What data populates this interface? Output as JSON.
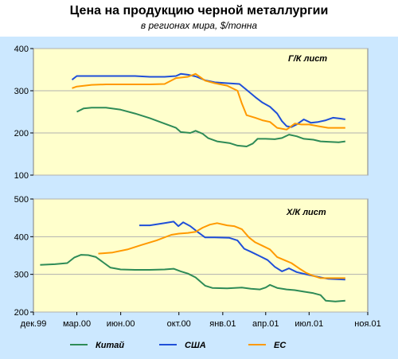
{
  "header": {
    "title": "Цена на продукцию черной металлургии",
    "subtitle_part1": "в регионах мира",
    "subtitle_part2": ", $/тонна"
  },
  "chart_data": [
    {
      "type": "line",
      "panel_label": "Г/К лист",
      "ylim": [
        100,
        400
      ],
      "yticks": [
        100,
        200,
        300,
        400
      ],
      "x_range": [
        "1999-12-01",
        "2001-11-01"
      ],
      "grid": true,
      "series": [
        {
          "name": "Китай",
          "color": "#2e8b57",
          "points": [
            [
              "2000-03-01",
              250
            ],
            [
              "2000-03-15",
              258
            ],
            [
              "2000-04-01",
              260
            ],
            [
              "2000-05-01",
              260
            ],
            [
              "2000-06-01",
              255
            ],
            [
              "2000-07-01",
              246
            ],
            [
              "2000-08-01",
              235
            ],
            [
              "2000-09-01",
              222
            ],
            [
              "2000-09-25",
              212
            ],
            [
              "2000-10-05",
              202
            ],
            [
              "2000-10-25",
              200
            ],
            [
              "2000-11-05",
              205
            ],
            [
              "2000-11-20",
              198
            ],
            [
              "2000-12-01",
              188
            ],
            [
              "2000-12-20",
              180
            ],
            [
              "2001-01-15",
              176
            ],
            [
              "2001-02-01",
              170
            ],
            [
              "2001-02-20",
              168
            ],
            [
              "2001-03-05",
              175
            ],
            [
              "2001-03-15",
              186
            ],
            [
              "2001-04-01",
              186
            ],
            [
              "2001-04-20",
              185
            ],
            [
              "2001-05-05",
              188
            ],
            [
              "2001-05-20",
              196
            ],
            [
              "2001-06-05",
              192
            ],
            [
              "2001-06-20",
              186
            ],
            [
              "2001-07-10",
              184
            ],
            [
              "2001-07-25",
              180
            ],
            [
              "2001-08-10",
              179
            ],
            [
              "2001-09-01",
              178
            ],
            [
              "2001-09-15",
              180
            ]
          ]
        },
        {
          "name": "США",
          "color": "#1f4fd8",
          "points": [
            [
              "2000-02-20",
              326
            ],
            [
              "2000-03-01",
              335
            ],
            [
              "2000-04-01",
              335
            ],
            [
              "2000-05-01",
              335
            ],
            [
              "2000-06-01",
              335
            ],
            [
              "2000-07-01",
              335
            ],
            [
              "2000-08-01",
              333
            ],
            [
              "2000-09-01",
              333
            ],
            [
              "2000-09-25",
              335
            ],
            [
              "2000-10-05",
              340
            ],
            [
              "2000-10-20",
              338
            ],
            [
              "2000-11-05",
              334
            ],
            [
              "2000-11-25",
              325
            ],
            [
              "2000-12-15",
              320
            ],
            [
              "2001-01-10",
              318
            ],
            [
              "2001-02-05",
              316
            ],
            [
              "2001-02-20",
              302
            ],
            [
              "2001-03-10",
              285
            ],
            [
              "2001-03-25",
              272
            ],
            [
              "2001-04-10",
              262
            ],
            [
              "2001-04-25",
              246
            ],
            [
              "2001-05-05",
              228
            ],
            [
              "2001-05-15",
              216
            ],
            [
              "2001-05-25",
              214
            ],
            [
              "2001-06-05",
              220
            ],
            [
              "2001-06-20",
              232
            ],
            [
              "2001-07-05",
              224
            ],
            [
              "2001-07-20",
              226
            ],
            [
              "2001-08-05",
              230
            ],
            [
              "2001-08-20",
              236
            ],
            [
              "2001-09-05",
              234
            ],
            [
              "2001-09-15",
              232
            ]
          ]
        },
        {
          "name": "ЕС",
          "color": "#ff9900",
          "points": [
            [
              "2000-02-20",
              306
            ],
            [
              "2000-03-01",
              310
            ],
            [
              "2000-04-01",
              314
            ],
            [
              "2000-05-01",
              315
            ],
            [
              "2000-06-01",
              315
            ],
            [
              "2000-07-01",
              315
            ],
            [
              "2000-08-01",
              315
            ],
            [
              "2000-09-01",
              316
            ],
            [
              "2000-09-25",
              330
            ],
            [
              "2000-10-20",
              333
            ],
            [
              "2000-11-05",
              340
            ],
            [
              "2000-11-25",
              324
            ],
            [
              "2000-12-15",
              318
            ],
            [
              "2001-01-10",
              312
            ],
            [
              "2001-02-01",
              300
            ],
            [
              "2001-02-10",
              270
            ],
            [
              "2001-02-20",
              242
            ],
            [
              "2001-03-10",
              236
            ],
            [
              "2001-03-25",
              230
            ],
            [
              "2001-04-10",
              226
            ],
            [
              "2001-04-25",
              212
            ],
            [
              "2001-05-15",
              208
            ],
            [
              "2001-06-01",
              222
            ],
            [
              "2001-06-15",
              220
            ],
            [
              "2001-07-01",
              220
            ],
            [
              "2001-07-20",
              216
            ],
            [
              "2001-08-10",
              212
            ],
            [
              "2001-09-15",
              212
            ]
          ]
        }
      ]
    },
    {
      "type": "line",
      "panel_label": "Х/К лист",
      "ylim": [
        200,
        500
      ],
      "yticks": [
        200,
        300,
        400,
        500
      ],
      "xticks": [
        "дек.99",
        "мар.00",
        "июн.00",
        "окт.00",
        "янв.01",
        "апр.01",
        "июл.01",
        "ноя.01"
      ],
      "x_range": [
        "1999-12-01",
        "2001-11-01"
      ],
      "grid": true,
      "series": [
        {
          "name": "Китай",
          "color": "#2e8b57",
          "points": [
            [
              "1999-12-15",
              325
            ],
            [
              "2000-01-15",
              327
            ],
            [
              "2000-02-10",
              330
            ],
            [
              "2000-02-25",
              345
            ],
            [
              "2000-03-10",
              352
            ],
            [
              "2000-03-25",
              351
            ],
            [
              "2000-04-10",
              346
            ],
            [
              "2000-04-25",
              332
            ],
            [
              "2000-05-10",
              318
            ],
            [
              "2000-06-01",
              313
            ],
            [
              "2000-07-01",
              312
            ],
            [
              "2000-08-01",
              312
            ],
            [
              "2000-09-01",
              313
            ],
            [
              "2000-09-20",
              315
            ],
            [
              "2000-10-05",
              308
            ],
            [
              "2000-10-20",
              302
            ],
            [
              "2000-11-05",
              292
            ],
            [
              "2000-11-25",
              270
            ],
            [
              "2000-12-10",
              264
            ],
            [
              "2001-01-10",
              263
            ],
            [
              "2001-02-10",
              265
            ],
            [
              "2001-03-01",
              262
            ],
            [
              "2001-03-20",
              260
            ],
            [
              "2001-04-01",
              265
            ],
            [
              "2001-04-10",
              272
            ],
            [
              "2001-04-25",
              264
            ],
            [
              "2001-05-15",
              260
            ],
            [
              "2001-06-01",
              258
            ],
            [
              "2001-06-20",
              254
            ],
            [
              "2001-07-10",
              250
            ],
            [
              "2001-07-25",
              245
            ],
            [
              "2001-08-05",
              230
            ],
            [
              "2001-08-25",
              228
            ],
            [
              "2001-09-15",
              230
            ]
          ]
        },
        {
          "name": "США",
          "color": "#1f4fd8",
          "points": [
            [
              "2000-07-10",
              430
            ],
            [
              "2000-08-01",
              430
            ],
            [
              "2000-09-01",
              436
            ],
            [
              "2000-09-20",
              440
            ],
            [
              "2000-09-30",
              428
            ],
            [
              "2000-10-10",
              438
            ],
            [
              "2000-10-25",
              428
            ],
            [
              "2000-11-10",
              412
            ],
            [
              "2000-11-25",
              398
            ],
            [
              "2000-12-15",
              398
            ],
            [
              "2001-01-15",
              397
            ],
            [
              "2001-02-01",
              390
            ],
            [
              "2001-02-15",
              368
            ],
            [
              "2001-03-01",
              360
            ],
            [
              "2001-03-20",
              348
            ],
            [
              "2001-04-05",
              338
            ],
            [
              "2001-04-20",
              320
            ],
            [
              "2001-05-05",
              308
            ],
            [
              "2001-05-20",
              316
            ],
            [
              "2001-06-05",
              306
            ],
            [
              "2001-06-25",
              300
            ],
            [
              "2001-07-10",
              296
            ],
            [
              "2001-07-25",
              292
            ],
            [
              "2001-08-10",
              288
            ],
            [
              "2001-09-15",
              286
            ]
          ]
        },
        {
          "name": "ЕС",
          "color": "#ff9900",
          "points": [
            [
              "2000-04-15",
              355
            ],
            [
              "2000-05-15",
              358
            ],
            [
              "2000-06-15",
              366
            ],
            [
              "2000-07-15",
              378
            ],
            [
              "2000-08-15",
              390
            ],
            [
              "2000-09-15",
              405
            ],
            [
              "2000-10-01",
              408
            ],
            [
              "2000-10-20",
              410
            ],
            [
              "2000-11-05",
              413
            ],
            [
              "2000-11-20",
              424
            ],
            [
              "2000-12-05",
              432
            ],
            [
              "2000-12-20",
              436
            ],
            [
              "2001-01-10",
              430
            ],
            [
              "2001-01-25",
              428
            ],
            [
              "2001-02-10",
              420
            ],
            [
              "2001-02-25",
              398
            ],
            [
              "2001-03-10",
              385
            ],
            [
              "2001-03-25",
              376
            ],
            [
              "2001-04-10",
              366
            ],
            [
              "2001-04-25",
              346
            ],
            [
              "2001-05-10",
              338
            ],
            [
              "2001-05-25",
              330
            ],
            [
              "2001-06-10",
              316
            ],
            [
              "2001-06-25",
              304
            ],
            [
              "2001-07-10",
              296
            ],
            [
              "2001-07-25",
              290
            ],
            [
              "2001-08-10",
              290
            ],
            [
              "2001-09-15",
              290
            ]
          ]
        }
      ]
    }
  ],
  "legend": {
    "position": "bottom",
    "items": [
      {
        "name": "Китай",
        "color": "#2e8b57"
      },
      {
        "name": "США",
        "color": "#1f4fd8"
      },
      {
        "name": "ЕС",
        "color": "#ff9900"
      }
    ]
  },
  "colors": {
    "frame_background": "#cce8ff",
    "plot_background": "#ffffcc",
    "gridline": "#b0b0b0"
  }
}
